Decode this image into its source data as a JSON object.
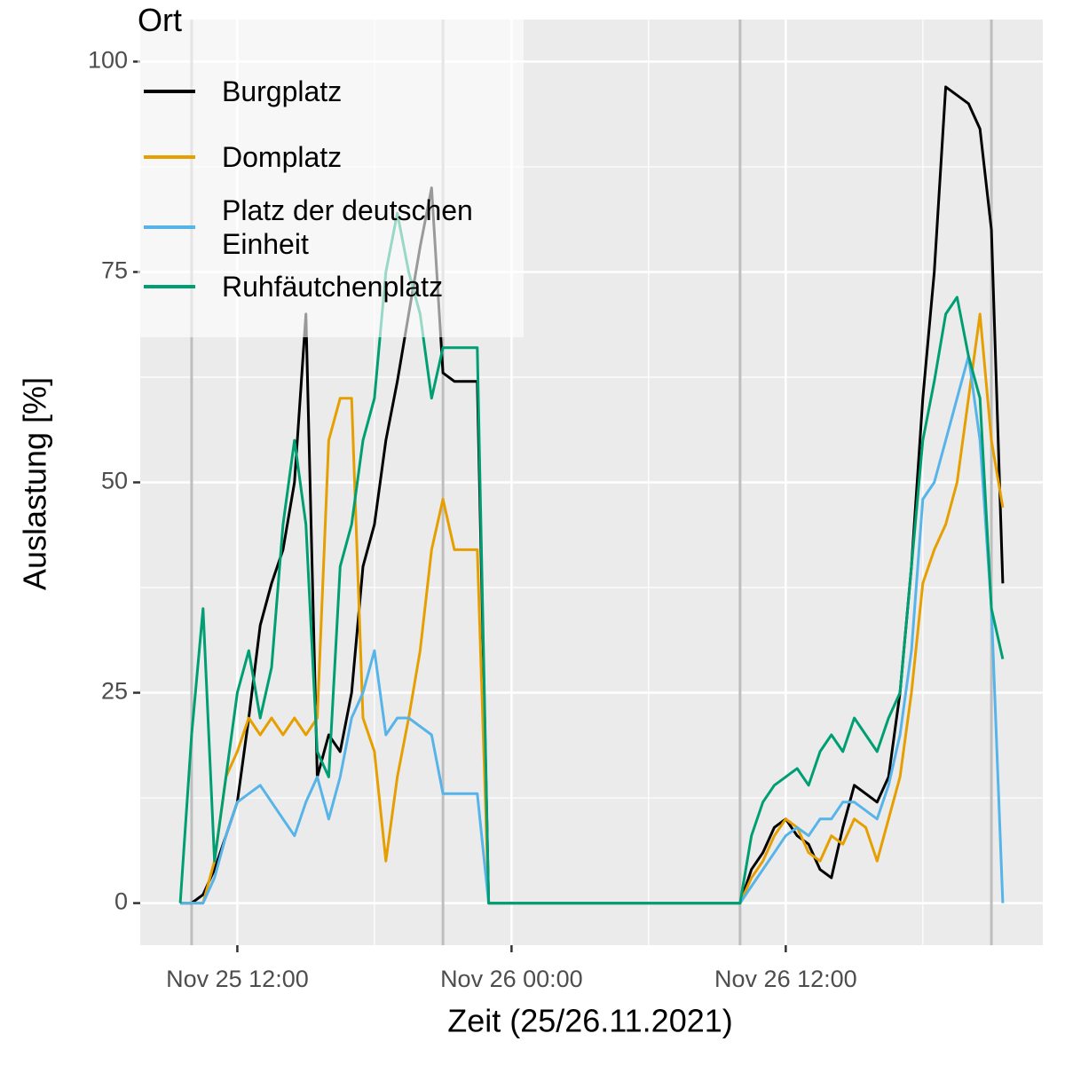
{
  "chart_data": {
    "type": "line",
    "xlabel": "Zeit (25/26.11.2021)",
    "ylabel": "Auslastung [%]",
    "legend_title": "Ort",
    "legend_position": "top-left",
    "x": [
      "2021-11-25T09:30",
      "2021-11-25T10:00",
      "2021-11-25T10:30",
      "2021-11-25T11:00",
      "2021-11-25T11:30",
      "2021-11-25T12:00",
      "2021-11-25T12:30",
      "2021-11-25T13:00",
      "2021-11-25T13:30",
      "2021-11-25T14:00",
      "2021-11-25T14:30",
      "2021-11-25T15:00",
      "2021-11-25T15:30",
      "2021-11-25T16:00",
      "2021-11-25T16:30",
      "2021-11-25T17:00",
      "2021-11-25T17:30",
      "2021-11-25T18:00",
      "2021-11-25T18:30",
      "2021-11-25T19:00",
      "2021-11-25T19:30",
      "2021-11-25T20:00",
      "2021-11-25T20:30",
      "2021-11-25T21:00",
      "2021-11-25T21:30",
      "2021-11-25T22:00",
      "2021-11-25T22:30",
      "2021-11-25T23:00",
      "2021-11-25T23:30",
      "2021-11-26T00:00",
      "2021-11-26T00:30",
      "2021-11-26T01:00",
      "2021-11-26T01:30",
      "2021-11-26T02:00",
      "2021-11-26T02:30",
      "2021-11-26T03:00",
      "2021-11-26T03:30",
      "2021-11-26T04:00",
      "2021-11-26T04:30",
      "2021-11-26T05:00",
      "2021-11-26T05:30",
      "2021-11-26T06:00",
      "2021-11-26T06:30",
      "2021-11-26T07:00",
      "2021-11-26T07:30",
      "2021-11-26T08:00",
      "2021-11-26T08:30",
      "2021-11-26T09:00",
      "2021-11-26T09:30",
      "2021-11-26T10:00",
      "2021-11-26T10:30",
      "2021-11-26T11:00",
      "2021-11-26T11:30",
      "2021-11-26T12:00",
      "2021-11-26T12:30",
      "2021-11-26T13:00",
      "2021-11-26T13:30",
      "2021-11-26T14:00",
      "2021-11-26T14:30",
      "2021-11-26T15:00",
      "2021-11-26T15:30",
      "2021-11-26T16:00",
      "2021-11-26T16:30",
      "2021-11-26T17:00",
      "2021-11-26T17:30",
      "2021-11-26T18:00",
      "2021-11-26T18:30",
      "2021-11-26T19:00",
      "2021-11-26T19:30",
      "2021-11-26T20:00",
      "2021-11-26T20:30",
      "2021-11-26T21:00",
      "2021-11-26T21:30"
    ],
    "series": [
      {
        "name": "Burgplatz",
        "color": "#000000",
        "values": [
          0,
          0,
          1,
          4,
          8,
          12,
          22,
          33,
          38,
          42,
          50,
          70,
          15,
          20,
          18,
          25,
          40,
          45,
          55,
          62,
          70,
          78,
          85,
          63,
          62,
          62,
          62,
          0,
          0,
          0,
          0,
          0,
          0,
          0,
          0,
          0,
          0,
          0,
          0,
          0,
          0,
          0,
          0,
          0,
          0,
          0,
          0,
          0,
          0,
          0,
          4,
          6,
          9,
          10,
          8,
          7,
          4,
          3,
          9,
          14,
          13,
          12,
          15,
          25,
          40,
          60,
          75,
          97,
          96,
          95,
          92,
          80,
          38
        ]
      },
      {
        "name": "Domplatz",
        "color": "#E69F00",
        "values": [
          0,
          0,
          0,
          5,
          15,
          18,
          22,
          20,
          22,
          20,
          22,
          20,
          22,
          55,
          60,
          60,
          22,
          18,
          5,
          15,
          22,
          30,
          42,
          48,
          42,
          42,
          42,
          0,
          0,
          0,
          0,
          0,
          0,
          0,
          0,
          0,
          0,
          0,
          0,
          0,
          0,
          0,
          0,
          0,
          0,
          0,
          0,
          0,
          0,
          0,
          3,
          5,
          8,
          10,
          9,
          6,
          5,
          8,
          7,
          10,
          9,
          5,
          10,
          15,
          25,
          38,
          42,
          45,
          50,
          60,
          70,
          55,
          47
        ]
      },
      {
        "name": "Platz der deutschen Einheit",
        "color": "#56B4E9",
        "values": [
          0,
          0,
          0,
          3,
          8,
          12,
          13,
          14,
          12,
          10,
          8,
          12,
          15,
          10,
          15,
          22,
          25,
          30,
          20,
          22,
          22,
          21,
          20,
          13,
          13,
          13,
          13,
          0,
          0,
          0,
          0,
          0,
          0,
          0,
          0,
          0,
          0,
          0,
          0,
          0,
          0,
          0,
          0,
          0,
          0,
          0,
          0,
          0,
          0,
          0,
          2,
          4,
          6,
          8,
          9,
          8,
          10,
          10,
          12,
          12,
          11,
          10,
          14,
          20,
          30,
          48,
          50,
          55,
          60,
          65,
          55,
          35,
          0
        ]
      },
      {
        "name": "Ruhfäutchenplatz",
        "color": "#009E73",
        "values": [
          0,
          20,
          35,
          5,
          15,
          25,
          30,
          22,
          28,
          45,
          55,
          45,
          18,
          15,
          40,
          45,
          55,
          60,
          75,
          82,
          75,
          70,
          60,
          66,
          66,
          66,
          66,
          0,
          0,
          0,
          0,
          0,
          0,
          0,
          0,
          0,
          0,
          0,
          0,
          0,
          0,
          0,
          0,
          0,
          0,
          0,
          0,
          0,
          0,
          0,
          8,
          12,
          14,
          15,
          16,
          14,
          18,
          20,
          18,
          22,
          20,
          18,
          22,
          25,
          40,
          55,
          62,
          70,
          72,
          65,
          60,
          35,
          29
        ]
      }
    ],
    "xlim": [
      "2021-11-25T07:45",
      "2021-11-26T23:15"
    ],
    "xticks": [
      {
        "value": "2021-11-25T12:00",
        "label": "Nov 25 12:00"
      },
      {
        "value": "2021-11-26T00:00",
        "label": "Nov 26 00:00"
      },
      {
        "value": "2021-11-26T12:00",
        "label": "Nov 26 12:00"
      }
    ],
    "xminor": [
      "2021-11-25T18:00",
      "2021-11-26T06:00",
      "2021-11-26T18:00"
    ],
    "ylim": [
      -5,
      105
    ],
    "yticks": [
      0,
      25,
      50,
      75,
      100
    ],
    "yminor": [
      12.5,
      37.5,
      62.5,
      87.5
    ],
    "vlines": [
      "2021-11-25T10:00",
      "2021-11-25T21:00",
      "2021-11-26T10:00",
      "2021-11-26T21:00"
    ],
    "vline_color": "#bebebe",
    "grid": true
  }
}
